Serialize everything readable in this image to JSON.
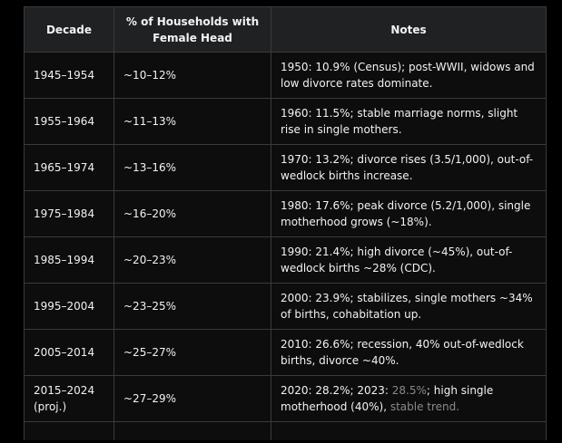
{
  "table": {
    "headers": [
      "Decade",
      "% of Households with Female Head",
      "Notes"
    ],
    "rows": [
      {
        "decade": "1945–1954",
        "percent": "~10–12%",
        "notes": "1950: 10.9% (Census); post-WWII, widows and low divorce rates dominate."
      },
      {
        "decade": "1955–1964",
        "percent": "~11–13%",
        "notes": "1960: 11.5%; stable marriage norms, slight rise in single mothers."
      },
      {
        "decade": "1965–1974",
        "percent": "~13–16%",
        "notes": "1970: 13.2%; divorce rises (3.5/1,000), out-of-wedlock births increase."
      },
      {
        "decade": "1975–1984",
        "percent": "~16–20%",
        "notes": "1980: 17.6%; peak divorce (5.2/1,000), single motherhood grows (~18%)."
      },
      {
        "decade": "1985–1994",
        "percent": "~20–23%",
        "notes": "1990: 21.4%; high divorce (~45%), out-of-wedlock births ~28% (CDC)."
      },
      {
        "decade": "1995–2004",
        "percent": "~23–25%",
        "notes": "2000: 23.9%; stabilizes, single mothers ~34% of births, cohabitation up."
      },
      {
        "decade": "2005–2014",
        "percent": "~25–27%",
        "notes": "2010: 26.6%; recession, 40% out-of-wedlock births, divorce ~40%."
      },
      {
        "decade": "2015–2024 (proj.)",
        "percent": "~27–29%",
        "notes_a": "2020: 28.2%; 2023: ",
        "notes_b": "28.5%",
        "notes_c": "; high single motherhood (40%), ",
        "notes_d": "stable trend."
      }
    ]
  }
}
